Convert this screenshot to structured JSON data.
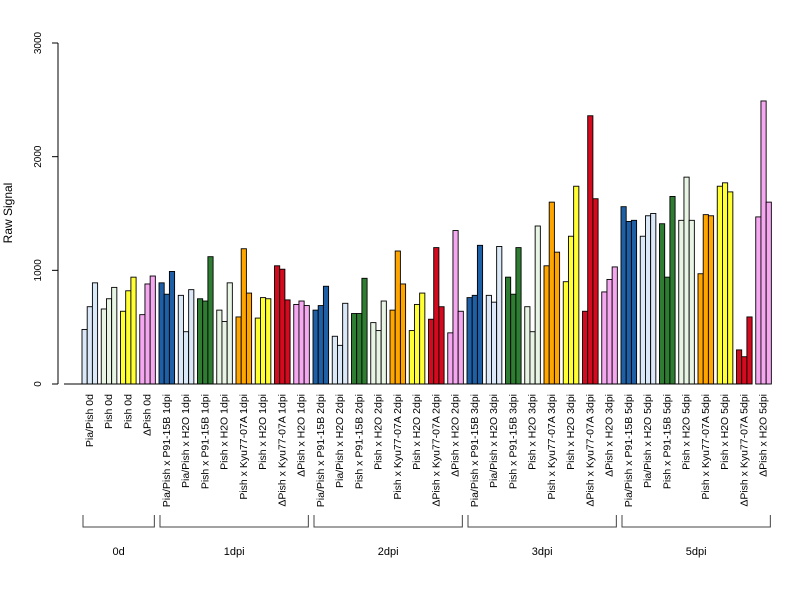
{
  "chart_data": {
    "type": "bar",
    "ylabel": "Raw Signal",
    "ylim": [
      0,
      3000
    ],
    "yticks": [
      0,
      1000,
      2000,
      3000
    ],
    "colors": {
      "pia_pish": "#dbe8f7",
      "pish": "#e8f4e4",
      "h2o_yellow": "#ffff33",
      "delta_pish": "#f5a8f0",
      "p91_15b_pia": "#1f5fa6",
      "p91_15b_pish": "#2e7d32",
      "kyu77_pish": "#ffa500",
      "kyu77_delta": "#d40a1e"
    },
    "categories": [
      {
        "label": "Pia/Pish 0d",
        "group": "0d",
        "color": "pia_pish",
        "values": [
          480,
          680,
          890
        ]
      },
      {
        "label": "Pish 0d",
        "group": "0d",
        "color": "pish",
        "values": [
          660,
          750,
          850
        ]
      },
      {
        "label": "Pish 0d",
        "group": "0d",
        "color": "h2o_yellow",
        "values": [
          640,
          820,
          940
        ]
      },
      {
        "label": "ΔPish 0d",
        "group": "0d",
        "color": "delta_pish",
        "values": [
          610,
          880,
          950
        ]
      },
      {
        "label": "Pia/Pish x P91-15B 1dpi",
        "group": "1dpi",
        "color": "p91_15b_pia",
        "values": [
          890,
          790,
          990
        ]
      },
      {
        "label": "Pia/Pish x H2O 1dpi",
        "group": "1dpi",
        "color": "pia_pish",
        "values": [
          780,
          460,
          830
        ]
      },
      {
        "label": "Pish x P91-15B 1dpi",
        "group": "1dpi",
        "color": "p91_15b_pish",
        "values": [
          750,
          730,
          1120
        ]
      },
      {
        "label": "Pish x H2O 1dpi",
        "group": "1dpi",
        "color": "pish",
        "values": [
          650,
          550,
          890
        ]
      },
      {
        "label": "Pish x Kyu77-07A 1dpi",
        "group": "1dpi",
        "color": "kyu77_pish",
        "values": [
          590,
          1190,
          800
        ]
      },
      {
        "label": "Pish x H2O 1dpi",
        "group": "1dpi",
        "color": "h2o_yellow",
        "values": [
          580,
          760,
          750
        ]
      },
      {
        "label": "ΔPish x Kyu77-07A 1dpi",
        "group": "1dpi",
        "color": "kyu77_delta",
        "values": [
          1040,
          1010,
          740
        ]
      },
      {
        "label": "ΔPish x H2O 1dpi",
        "group": "1dpi",
        "color": "delta_pish",
        "values": [
          700,
          730,
          690
        ]
      },
      {
        "label": "Pia/Pish x P91-15B 2dpi",
        "group": "2dpi",
        "color": "p91_15b_pia",
        "values": [
          650,
          690,
          860
        ]
      },
      {
        "label": "Pia/Pish x H2O 2dpi",
        "group": "2dpi",
        "color": "pia_pish",
        "values": [
          420,
          340,
          710
        ]
      },
      {
        "label": "Pish x P91-15B 2dpi",
        "group": "2dpi",
        "color": "p91_15b_pish",
        "values": [
          620,
          620,
          930
        ]
      },
      {
        "label": "Pish x H2O 2dpi",
        "group": "2dpi",
        "color": "pish",
        "values": [
          540,
          470,
          730
        ]
      },
      {
        "label": "Pish x Kyu77-07A 2dpi",
        "group": "2dpi",
        "color": "kyu77_pish",
        "values": [
          650,
          1170,
          880
        ]
      },
      {
        "label": "Pish x H2O 2dpi",
        "group": "2dpi",
        "color": "h2o_yellow",
        "values": [
          470,
          700,
          800
        ]
      },
      {
        "label": "ΔPish x Kyu77-07A 2dpi",
        "group": "2dpi",
        "color": "kyu77_delta",
        "values": [
          570,
          1200,
          680
        ]
      },
      {
        "label": "ΔPish x H2O 2dpi",
        "group": "2dpi",
        "color": "delta_pish",
        "values": [
          450,
          1350,
          640
        ]
      },
      {
        "label": "Pia/Pish x P91-15B 3dpi",
        "group": "3dpi",
        "color": "p91_15b_pia",
        "values": [
          760,
          780,
          1220
        ]
      },
      {
        "label": "Pia/Pish x H2O 3dpi",
        "group": "3dpi",
        "color": "pia_pish",
        "values": [
          780,
          720,
          1210
        ]
      },
      {
        "label": "Pish x P91-15B 3dpi",
        "group": "3dpi",
        "color": "p91_15b_pish",
        "values": [
          940,
          790,
          1200
        ]
      },
      {
        "label": "Pish x H2O 3dpi",
        "group": "3dpi",
        "color": "pish",
        "values": [
          680,
          460,
          1390
        ]
      },
      {
        "label": "Pish x Kyu77-07A 3dpi",
        "group": "3dpi",
        "color": "kyu77_pish",
        "values": [
          1040,
          1600,
          1160
        ]
      },
      {
        "label": "Pish x H2O 3dpi",
        "group": "3dpi",
        "color": "h2o_yellow",
        "values": [
          900,
          1300,
          1740
        ]
      },
      {
        "label": "ΔPish x Kyu77-07A 3dpi",
        "group": "3dpi",
        "color": "kyu77_delta",
        "values": [
          640,
          2360,
          1630
        ]
      },
      {
        "label": "ΔPish x H2O 3dpi",
        "group": "3dpi",
        "color": "delta_pish",
        "values": [
          810,
          920,
          1030
        ]
      },
      {
        "label": "Pia/Pish x P91-15B 5dpi",
        "group": "5dpi",
        "color": "p91_15b_pia",
        "values": [
          1560,
          1430,
          1440
        ]
      },
      {
        "label": "Pia/Pish x H2O 5dpi",
        "group": "5dpi",
        "color": "pia_pish",
        "values": [
          1300,
          1480,
          1500
        ]
      },
      {
        "label": "Pish x P91-15B 5dpi",
        "group": "5dpi",
        "color": "p91_15b_pish",
        "values": [
          1410,
          940,
          1650
        ]
      },
      {
        "label": "Pish x H2O 5dpi",
        "group": "5dpi",
        "color": "pish",
        "values": [
          1440,
          1820,
          1440
        ]
      },
      {
        "label": "Pish x Kyu77-07A 5dpi",
        "group": "5dpi",
        "color": "kyu77_pish",
        "values": [
          970,
          1490,
          1480
        ]
      },
      {
        "label": "Pish x H2O 5dpi",
        "group": "5dpi",
        "color": "h2o_yellow",
        "values": [
          1740,
          1770,
          1690
        ]
      },
      {
        "label": "ΔPish x Kyu77-07A 5dpi",
        "group": "5dpi",
        "color": "kyu77_delta",
        "values": [
          300,
          240,
          590
        ]
      },
      {
        "label": "ΔPish x H2O 5dpi",
        "group": "5dpi",
        "color": "delta_pish",
        "values": [
          1470,
          2490,
          1600
        ]
      }
    ],
    "groups": [
      {
        "label": "0d",
        "first": 0,
        "last": 3
      },
      {
        "label": "1dpi",
        "first": 4,
        "last": 11
      },
      {
        "label": "2dpi",
        "first": 12,
        "last": 19
      },
      {
        "label": "3dpi",
        "first": 20,
        "last": 27
      },
      {
        "label": "5dpi",
        "first": 28,
        "last": 35
      }
    ]
  }
}
